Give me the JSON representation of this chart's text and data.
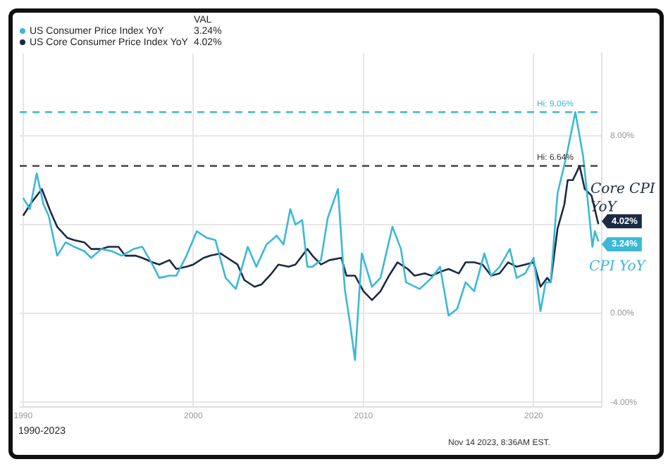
{
  "chart_data": {
    "type": "line",
    "subtitle": "1990-2023",
    "legend_title": "VAL",
    "legend": "top left",
    "grid": true,
    "marker": "none",
    "line_style": "solid",
    "xlim": [
      1989.8,
      2024
    ],
    "xticks": [
      1990,
      2000,
      2010,
      2020
    ],
    "ylim": [
      -4.2,
      11.7
    ],
    "yticks": [
      {
        "value": 8,
        "label": "8.00%"
      },
      {
        "value": 4,
        "label": null
      },
      {
        "value": 0,
        "label": "0.00%"
      },
      {
        "value": -4,
        "label": "-4.00%"
      }
    ],
    "series": [
      {
        "name": "US Consumer Price Index YoY",
        "color": "#3bb8d8",
        "x": [
          1990,
          1990.4,
          1990.8,
          1991.2,
          1991.5,
          1992,
          1992.5,
          1993,
          1993.6,
          1994,
          1994.6,
          1995.2,
          1995.8,
          1996.5,
          1997,
          1997.6,
          1998,
          1998.6,
          1999,
          1999.6,
          2000.2,
          2000.8,
          2001.3,
          2001.9,
          2002.5,
          2003.2,
          2003.7,
          2004.3,
          2004.9,
          2005.3,
          2005.7,
          2006,
          2006.4,
          2006.7,
          2007,
          2007.5,
          2007.9,
          2008.5,
          2008.9,
          2009.2,
          2009.5,
          2009.9,
          2010.5,
          2011,
          2011.7,
          2012.2,
          2012.5,
          2013.3,
          2014,
          2014.5,
          2015,
          2015.5,
          2016,
          2016.5,
          2017.1,
          2017.5,
          2018,
          2018.6,
          2019,
          2019.5,
          2020,
          2020.4,
          2020.7,
          2021,
          2021.4,
          2021.9,
          2022.45,
          2022.9,
          2023,
          2023.45,
          2023.6,
          2023.8
        ],
        "values": [
          5.2,
          4.7,
          6.3,
          4.9,
          4.4,
          2.6,
          3.2,
          3.0,
          2.8,
          2.5,
          2.9,
          2.8,
          2.6,
          2.9,
          3.0,
          2.2,
          1.6,
          1.7,
          1.7,
          2.6,
          3.7,
          3.4,
          3.3,
          1.6,
          1.1,
          3.0,
          2.1,
          3.1,
          3.5,
          3.1,
          4.7,
          4.0,
          4.2,
          2.1,
          2.1,
          2.4,
          4.3,
          5.6,
          1.1,
          -0.4,
          -2.1,
          2.7,
          1.2,
          1.6,
          3.9,
          2.9,
          1.4,
          1.1,
          1.6,
          2.1,
          -0.1,
          0.2,
          1.4,
          1.0,
          2.7,
          1.7,
          2.1,
          2.9,
          1.6,
          1.8,
          2.5,
          0.1,
          1.4,
          1.4,
          5.4,
          7.0,
          9.06,
          7.1,
          6.4,
          3.0,
          3.7,
          3.24
        ],
        "value_labels": [
          null,
          null,
          null,
          null,
          null,
          null,
          null,
          null,
          null,
          null,
          null,
          null,
          null,
          null,
          null,
          null,
          null,
          null,
          null,
          null,
          null,
          null,
          null,
          null,
          null,
          null,
          null,
          null,
          null,
          null,
          null,
          null,
          null,
          null,
          null,
          null,
          null,
          null,
          null,
          null,
          null,
          null,
          null,
          null,
          null,
          null,
          null,
          null,
          null,
          null,
          null,
          null,
          null,
          null,
          null,
          null,
          null,
          null,
          null,
          null,
          null,
          null,
          null,
          null,
          null,
          null,
          null,
          null,
          null,
          null,
          null,
          "3.24%"
        ]
      },
      {
        "name": "US Core Consumer Price Index YoY",
        "color": "#1b2a44",
        "x": [
          1990,
          1990.5,
          1991.1,
          1991.6,
          1992,
          1992.6,
          1993,
          1993.6,
          1994,
          1994.6,
          1995,
          1995.6,
          1996,
          1996.6,
          1997,
          1997.6,
          1998,
          1998.6,
          1999,
          1999.6,
          2000,
          2000.6,
          2001,
          2001.6,
          2002,
          2002.6,
          2003,
          2003.6,
          2004,
          2004.6,
          2005,
          2005.6,
          2006,
          2006.7,
          2007,
          2007.5,
          2008,
          2008.7,
          2009,
          2009.5,
          2010,
          2010.5,
          2011,
          2011.5,
          2012,
          2012.6,
          2013,
          2013.6,
          2014,
          2014.6,
          2015,
          2015.6,
          2016,
          2016.5,
          2017,
          2017.5,
          2018,
          2018.5,
          2019,
          2019.5,
          2020,
          2020.4,
          2020.8,
          2021,
          2021.4,
          2021.8,
          2022,
          2022.3,
          2022.7,
          2023,
          2023.4,
          2023.8
        ],
        "values": [
          4.4,
          5.0,
          5.6,
          4.6,
          3.9,
          3.4,
          3.3,
          3.2,
          2.9,
          2.9,
          3.0,
          3.0,
          2.6,
          2.6,
          2.5,
          2.3,
          2.2,
          2.4,
          2.0,
          2.1,
          2.2,
          2.5,
          2.6,
          2.7,
          2.5,
          2.2,
          1.5,
          1.2,
          1.3,
          1.8,
          2.2,
          2.1,
          2.2,
          2.9,
          2.6,
          2.2,
          2.4,
          2.5,
          1.7,
          1.7,
          1.0,
          0.6,
          1.0,
          1.7,
          2.3,
          2.0,
          1.7,
          1.8,
          1.7,
          1.9,
          2.0,
          1.8,
          2.3,
          2.3,
          2.2,
          1.7,
          1.8,
          2.3,
          2.1,
          2.2,
          2.3,
          1.2,
          1.6,
          1.4,
          3.8,
          4.9,
          6.0,
          6.0,
          6.64,
          5.6,
          5.3,
          4.02
        ],
        "value_labels": [
          null,
          null,
          null,
          null,
          null,
          null,
          null,
          null,
          null,
          null,
          null,
          null,
          null,
          null,
          null,
          null,
          null,
          null,
          null,
          null,
          null,
          null,
          null,
          null,
          null,
          null,
          null,
          null,
          null,
          null,
          null,
          null,
          null,
          null,
          null,
          null,
          null,
          null,
          null,
          null,
          null,
          null,
          null,
          null,
          null,
          null,
          null,
          null,
          null,
          null,
          null,
          null,
          null,
          null,
          null,
          null,
          null,
          null,
          null,
          null,
          null,
          null,
          null,
          null,
          null,
          null,
          null,
          null,
          null,
          null,
          null,
          "4.02%"
        ]
      }
    ],
    "ref_lines": [
      {
        "axis": "y",
        "value": 9.06,
        "label": "Hi: 9.06%",
        "color": "#3bb8d8",
        "line_style": "dashed"
      },
      {
        "axis": "y",
        "value": 6.64,
        "label": "Hi: 6.64%",
        "color": "#333333",
        "line_style": "dashed"
      }
    ],
    "annotations": [
      "Core CPI YoY",
      "CPI YoY",
      "Nov 14 2023, 8:36AM EST."
    ]
  }
}
